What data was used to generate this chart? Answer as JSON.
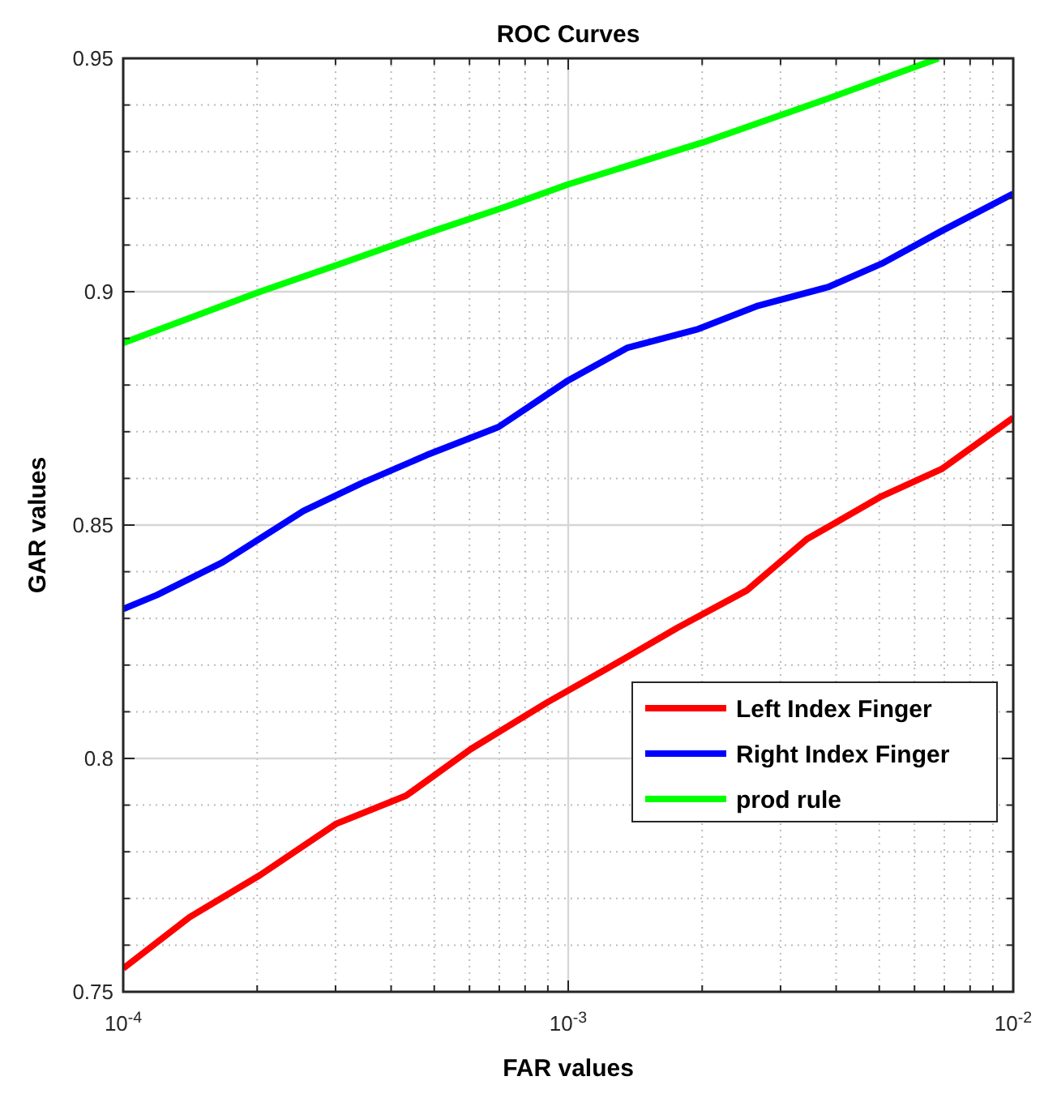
{
  "chart_data": {
    "type": "line",
    "title": "ROC Curves",
    "xlabel": "FAR values",
    "ylabel": "GAR values",
    "log": "x",
    "grid": true,
    "legend": "bottom right",
    "line_style": "solid",
    "marker": "none",
    "xlim": [
      0.0001,
      0.01
    ],
    "xticks": [
      {
        "value": 0.0001,
        "label": "10$^{-4}$"
      },
      {
        "value": 0.001,
        "label": "10$^{-3}$"
      },
      {
        "value": 0.01,
        "label": "10$^{-2}$"
      }
    ],
    "ylim": [
      0.75,
      0.95
    ],
    "yticks": [
      {
        "value": 0.75,
        "label": "0.75"
      },
      {
        "value": 0.8,
        "label": "0.8"
      },
      {
        "value": 0.85,
        "label": "0.85"
      },
      {
        "value": 0.9,
        "label": "0.9"
      },
      {
        "value": 0.95,
        "label": "0.95"
      }
    ],
    "series": [
      {
        "name": "Left Index Finger",
        "color": "#ff0000",
        "x": [
          0.0001,
          0.000141,
          0.000203,
          0.000301,
          0.000432,
          0.000604,
          0.000897,
          0.00121,
          0.00176,
          0.00252,
          0.00344,
          0.00502,
          0.0069,
          0.01
        ],
        "values": [
          0.755,
          0.766,
          0.775,
          0.786,
          0.792,
          0.802,
          0.812,
          0.819,
          0.828,
          0.836,
          0.847,
          0.856,
          0.862,
          0.873
        ]
      },
      {
        "name": "Right Index Finger",
        "color": "#0000ff",
        "x": [
          0.0001,
          0.000119,
          0.000167,
          0.000254,
          0.000344,
          0.000481,
          0.000697,
          0.001,
          0.00136,
          0.00196,
          0.00267,
          0.00384,
          0.00506,
          0.0069,
          0.01
        ],
        "values": [
          0.832,
          0.835,
          0.842,
          0.853,
          0.859,
          0.865,
          0.871,
          0.881,
          0.888,
          0.892,
          0.897,
          0.901,
          0.906,
          0.913,
          0.921
        ]
      },
      {
        "name": "prod rule",
        "color": "#00ff00",
        "x": [
          0.0001,
          0.000203,
          0.000308,
          0.000498,
          0.000714,
          0.001,
          0.00201,
          0.00374,
          0.00679
        ],
        "values": [
          0.889,
          0.9,
          0.906,
          0.913,
          0.918,
          0.923,
          0.932,
          0.941,
          0.95
        ]
      }
    ]
  }
}
